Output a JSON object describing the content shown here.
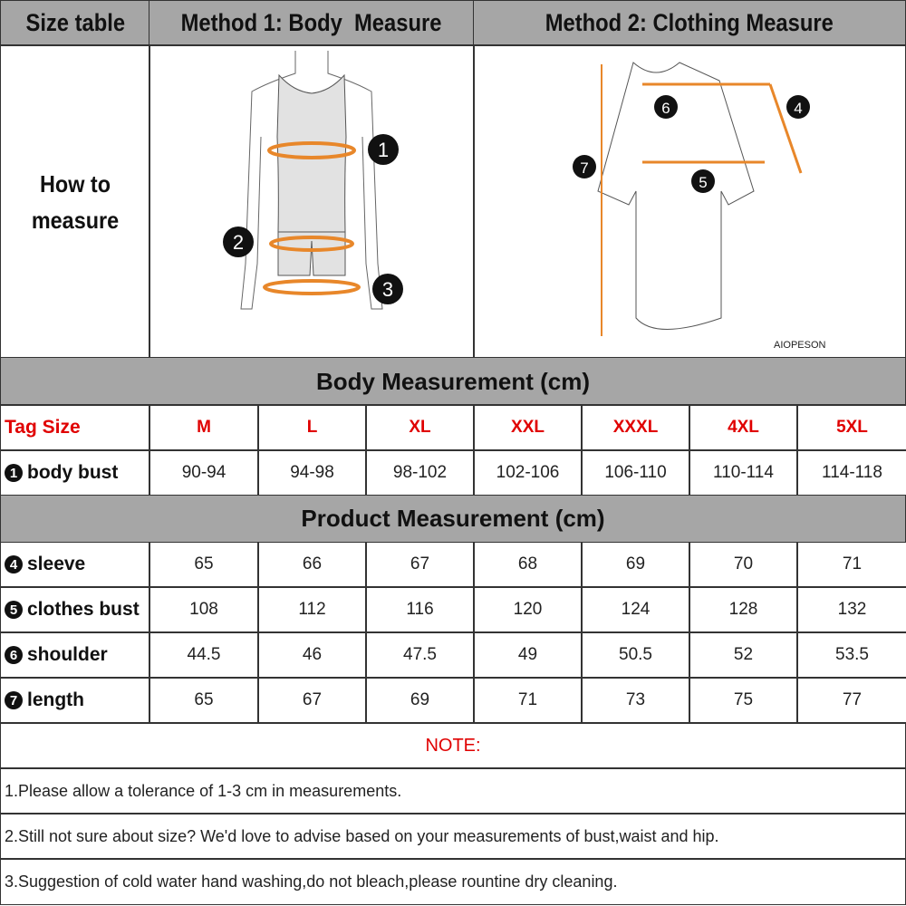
{
  "header": {
    "size_table": "Size table",
    "method1": "Method 1: Body  Measure",
    "method2": "Method 2: Clothing Measure"
  },
  "how_to": "How to measure",
  "body_markers": [
    "1",
    "2",
    "3"
  ],
  "clothing_markers": [
    "4",
    "5",
    "6",
    "7"
  ],
  "brand": "AIOPESON",
  "accent_color": "#e8872a",
  "body_section": "Body Measurement (cm)",
  "tag_label": "Tag Size",
  "sizes": [
    "M",
    "L",
    "XL",
    "XXL",
    "XXXL",
    "4XL",
    "5XL"
  ],
  "body_rows": [
    {
      "num": "1",
      "label": "body bust",
      "values": [
        "90-94",
        "94-98",
        "98-102",
        "102-106",
        "106-110",
        "110-114",
        "114-118"
      ]
    }
  ],
  "product_section": "Product Measurement (cm)",
  "product_rows": [
    {
      "num": "4",
      "label": "sleeve",
      "values": [
        "65",
        "66",
        "67",
        "68",
        "69",
        "70",
        "71"
      ]
    },
    {
      "num": "5",
      "label": "clothes bust",
      "values": [
        "108",
        "112",
        "116",
        "120",
        "124",
        "128",
        "132"
      ]
    },
    {
      "num": "6",
      "label": "shoulder",
      "values": [
        "44.5",
        "46",
        "47.5",
        "49",
        "50.5",
        "52",
        "53.5"
      ]
    },
    {
      "num": "7",
      "label": "length",
      "values": [
        "65",
        "67",
        "69",
        "71",
        "73",
        "75",
        "77"
      ]
    }
  ],
  "note_title": "NOTE:",
  "notes": [
    "1.Please allow a tolerance of 1-3 cm in measurements.",
    "2.Still not sure about size? We'd love to advise based on your measurements of bust,waist and hip.",
    "3.Suggestion of cold water hand washing,do not bleach,please rountine dry cleaning."
  ]
}
